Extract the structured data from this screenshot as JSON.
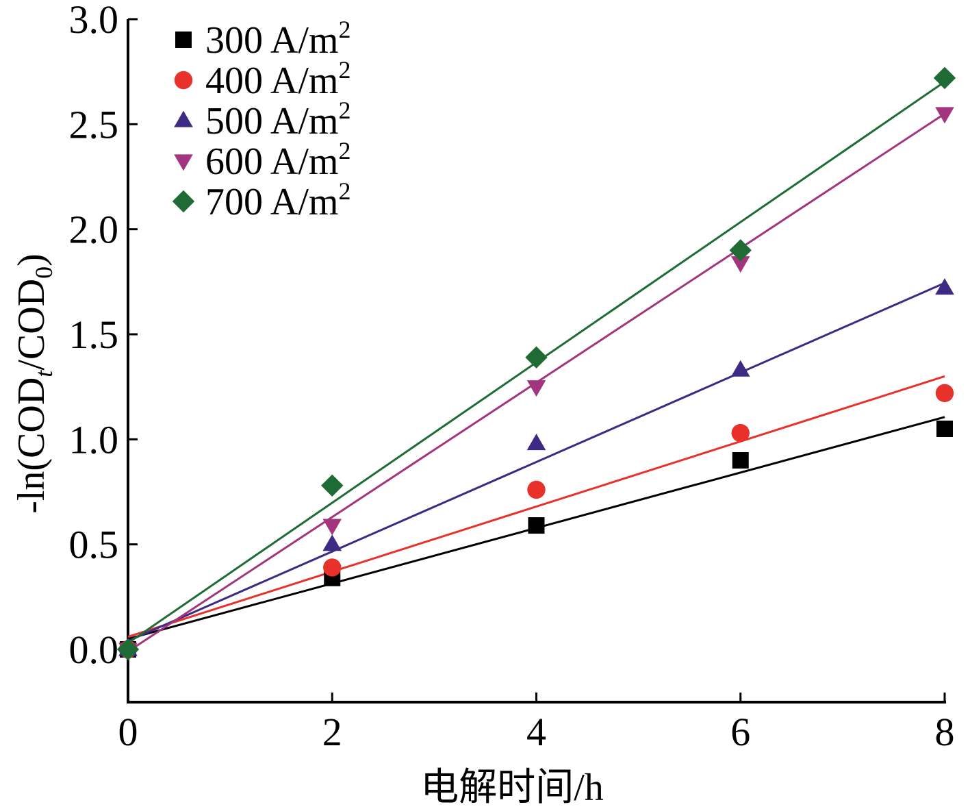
{
  "chart_data": {
    "type": "scatter",
    "xlabel": "电解时间/h",
    "ylabel_parts": {
      "prefix": "-ln(COD",
      "sub1": "t",
      "middle": "/COD",
      "sub2": "0",
      "suffix": ")"
    },
    "xlim": [
      0,
      8
    ],
    "ylim": [
      -0.25,
      3.0
    ],
    "xticks": [
      0,
      2,
      4,
      6,
      8
    ],
    "xtick_labels": [
      "0",
      "2",
      "4",
      "6",
      "8"
    ],
    "yticks": [
      0.0,
      0.5,
      1.0,
      1.5,
      2.0,
      2.5,
      3.0
    ],
    "ytick_labels": [
      "0.0",
      "0.5",
      "1.0",
      "1.5",
      "2.0",
      "2.5",
      "3.0"
    ],
    "grid": false,
    "legend_position": "top-left",
    "legend_unit_base": "A/m",
    "legend_unit_sup": "2",
    "x": [
      0,
      2,
      4,
      6,
      8
    ],
    "series": [
      {
        "name": "300",
        "marker": "square",
        "color": "#000000",
        "values": [
          0.0,
          0.34,
          0.59,
          0.9,
          1.05
        ],
        "fit": [
          0.05,
          0.132
        ]
      },
      {
        "name": "400",
        "marker": "circle",
        "color": "#e8312a",
        "values": [
          0.0,
          0.39,
          0.76,
          1.03,
          1.22
        ],
        "fit": [
          0.06,
          0.155
        ]
      },
      {
        "name": "500",
        "marker": "triangle-up",
        "color": "#3d2a85",
        "values": [
          0.0,
          0.5,
          0.98,
          1.33,
          1.72
        ],
        "fit": [
          0.04,
          0.213
        ]
      },
      {
        "name": "600",
        "marker": "triangle-down",
        "color": "#a3357f",
        "values": [
          0.0,
          0.59,
          1.25,
          1.84,
          2.55
        ],
        "fit": [
          -0.01,
          0.32
        ]
      },
      {
        "name": "700",
        "marker": "diamond",
        "color": "#1f6b35",
        "values": [
          0.0,
          0.78,
          1.39,
          1.9,
          2.72
        ],
        "fit": [
          0.03,
          0.334
        ]
      }
    ]
  }
}
